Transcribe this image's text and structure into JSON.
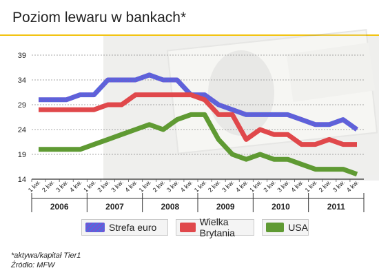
{
  "title": "Poziom lewaru w bankach*",
  "footnote": "*aktywa/kapitał Tier1",
  "source": "Źródło: MFW",
  "chart_data": {
    "type": "line",
    "title": "Poziom lewaru w bankach*",
    "ylim": [
      14,
      39
    ],
    "yticks": [
      14,
      19,
      24,
      29,
      34,
      39
    ],
    "grid": true,
    "legend_position": "bottom",
    "quarters": [
      "1 kw.",
      "2 kw.",
      "3 kw.",
      "4 kw."
    ],
    "years": [
      "2006",
      "2007",
      "2008",
      "2009",
      "2010",
      "2011"
    ],
    "x": [
      "2006 1 kw.",
      "2006 2 kw.",
      "2006 3 kw.",
      "2006 4 kw.",
      "2007 1 kw.",
      "2007 2 kw.",
      "2007 3 kw.",
      "2007 4 kw.",
      "2008 1 kw.",
      "2008 2 kw.",
      "2008 3 kw.",
      "2008 4 kw.",
      "2009 1 kw.",
      "2009 2 kw.",
      "2009 3 kw.",
      "2009 4 kw.",
      "2010 1 kw.",
      "2010 2 kw.",
      "2010 3 kw.",
      "2010 4 kw.",
      "2011 1 kw.",
      "2011 2 kw.",
      "2011 3 kw.",
      "2011 4 kw."
    ],
    "series": [
      {
        "name": "Strefa euro",
        "color": "#4a6fe0",
        "values": [
          30,
          30,
          30,
          31,
          31,
          34,
          34,
          34,
          35,
          34,
          34,
          31,
          31,
          29,
          28,
          27,
          27,
          27,
          27,
          26,
          25,
          25,
          26,
          24
        ]
      },
      {
        "name": "Wielka Brytania",
        "color": "#e0484b",
        "values": [
          28,
          28,
          28,
          28,
          28,
          29,
          29,
          31,
          31,
          31,
          31,
          31,
          30,
          27,
          27,
          22,
          24,
          23,
          23,
          21,
          21,
          22,
          21,
          21
        ]
      },
      {
        "name": "USA",
        "color": "#5f9a33",
        "values": [
          20,
          20,
          20,
          20,
          21,
          22,
          23,
          24,
          25,
          24,
          26,
          27,
          27,
          22,
          19,
          18,
          19,
          18,
          18,
          17,
          16,
          16,
          16,
          15
        ]
      }
    ]
  }
}
